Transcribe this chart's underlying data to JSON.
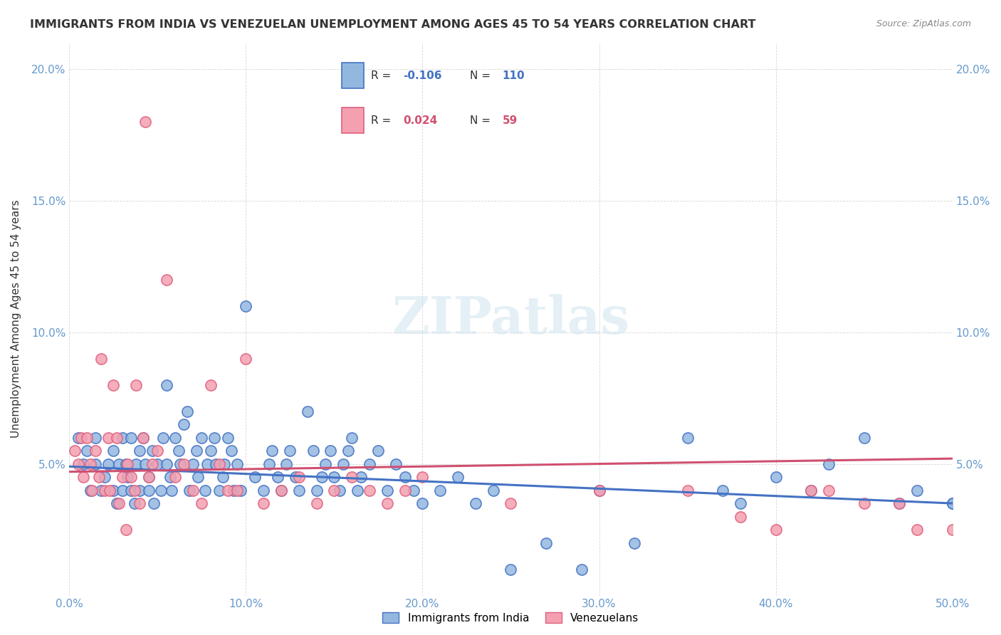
{
  "title": "IMMIGRANTS FROM INDIA VS VENEZUELAN UNEMPLOYMENT AMONG AGES 45 TO 54 YEARS CORRELATION CHART",
  "source": "Source: ZipAtlas.com",
  "xlabel": "",
  "ylabel": "Unemployment Among Ages 45 to 54 years",
  "xlim": [
    0.0,
    0.5
  ],
  "ylim": [
    0.0,
    0.21
  ],
  "xticks": [
    0.0,
    0.1,
    0.2,
    0.3,
    0.4,
    0.5
  ],
  "xticklabels": [
    "0.0%",
    "10.0%",
    "20.0%",
    "30.0%",
    "40.0%",
    "50.0%"
  ],
  "yticks_left": [
    0.0,
    0.05,
    0.1,
    0.15,
    0.2
  ],
  "yticklabels_left": [
    "",
    "5.0%",
    "10.0%",
    "15.0%",
    "20.0%"
  ],
  "yticks_right": [
    0.0,
    0.05,
    0.1,
    0.15,
    0.2
  ],
  "yticklabels_right": [
    "",
    "5.0%",
    "10.0%",
    "15.0%",
    "20.0%"
  ],
  "legend_r1": "R = -0.106",
  "legend_n1": "N = 110",
  "legend_r2": "R =  0.024",
  "legend_n2": "N =  59",
  "blue_color": "#93b8e0",
  "pink_color": "#f4a0b0",
  "blue_line_color": "#4472c4",
  "pink_line_color": "#e07080",
  "title_color": "#333333",
  "axis_color": "#6699cc",
  "watermark": "ZIPatlas",
  "blue_scatter_x": [
    0.005,
    0.008,
    0.01,
    0.012,
    0.015,
    0.015,
    0.018,
    0.02,
    0.022,
    0.025,
    0.025,
    0.027,
    0.028,
    0.03,
    0.03,
    0.032,
    0.033,
    0.035,
    0.035,
    0.037,
    0.038,
    0.04,
    0.04,
    0.042,
    0.043,
    0.045,
    0.045,
    0.047,
    0.048,
    0.05,
    0.052,
    0.053,
    0.055,
    0.055,
    0.057,
    0.058,
    0.06,
    0.062,
    0.063,
    0.065,
    0.067,
    0.068,
    0.07,
    0.072,
    0.073,
    0.075,
    0.077,
    0.078,
    0.08,
    0.082,
    0.083,
    0.085,
    0.087,
    0.088,
    0.09,
    0.092,
    0.093,
    0.095,
    0.097,
    0.1,
    0.105,
    0.11,
    0.113,
    0.115,
    0.118,
    0.12,
    0.123,
    0.125,
    0.128,
    0.13,
    0.135,
    0.138,
    0.14,
    0.143,
    0.145,
    0.148,
    0.15,
    0.153,
    0.155,
    0.158,
    0.16,
    0.163,
    0.165,
    0.17,
    0.175,
    0.18,
    0.185,
    0.19,
    0.195,
    0.2,
    0.21,
    0.22,
    0.23,
    0.24,
    0.25,
    0.27,
    0.29,
    0.3,
    0.32,
    0.35,
    0.37,
    0.38,
    0.4,
    0.42,
    0.43,
    0.45,
    0.47,
    0.48,
    0.5,
    0.5
  ],
  "blue_scatter_y": [
    0.06,
    0.05,
    0.055,
    0.04,
    0.05,
    0.06,
    0.04,
    0.045,
    0.05,
    0.055,
    0.04,
    0.035,
    0.05,
    0.04,
    0.06,
    0.05,
    0.045,
    0.06,
    0.04,
    0.035,
    0.05,
    0.04,
    0.055,
    0.06,
    0.05,
    0.04,
    0.045,
    0.055,
    0.035,
    0.05,
    0.04,
    0.06,
    0.08,
    0.05,
    0.045,
    0.04,
    0.06,
    0.055,
    0.05,
    0.065,
    0.07,
    0.04,
    0.05,
    0.055,
    0.045,
    0.06,
    0.04,
    0.05,
    0.055,
    0.06,
    0.05,
    0.04,
    0.045,
    0.05,
    0.06,
    0.055,
    0.04,
    0.05,
    0.04,
    0.11,
    0.045,
    0.04,
    0.05,
    0.055,
    0.045,
    0.04,
    0.05,
    0.055,
    0.045,
    0.04,
    0.07,
    0.055,
    0.04,
    0.045,
    0.05,
    0.055,
    0.045,
    0.04,
    0.05,
    0.055,
    0.06,
    0.04,
    0.045,
    0.05,
    0.055,
    0.04,
    0.05,
    0.045,
    0.04,
    0.035,
    0.04,
    0.045,
    0.035,
    0.04,
    0.01,
    0.02,
    0.01,
    0.04,
    0.02,
    0.06,
    0.04,
    0.035,
    0.045,
    0.04,
    0.05,
    0.06,
    0.035,
    0.04,
    0.035,
    0.035
  ],
  "pink_scatter_x": [
    0.003,
    0.005,
    0.007,
    0.008,
    0.01,
    0.012,
    0.013,
    0.015,
    0.017,
    0.018,
    0.02,
    0.022,
    0.023,
    0.025,
    0.027,
    0.028,
    0.03,
    0.032,
    0.033,
    0.035,
    0.037,
    0.038,
    0.04,
    0.042,
    0.043,
    0.045,
    0.047,
    0.05,
    0.055,
    0.06,
    0.065,
    0.07,
    0.075,
    0.08,
    0.085,
    0.09,
    0.095,
    0.1,
    0.11,
    0.12,
    0.13,
    0.14,
    0.15,
    0.16,
    0.17,
    0.18,
    0.19,
    0.2,
    0.25,
    0.3,
    0.35,
    0.38,
    0.4,
    0.42,
    0.43,
    0.45,
    0.47,
    0.48,
    0.5
  ],
  "pink_scatter_y": [
    0.055,
    0.05,
    0.06,
    0.045,
    0.06,
    0.05,
    0.04,
    0.055,
    0.045,
    0.09,
    0.04,
    0.06,
    0.04,
    0.08,
    0.06,
    0.035,
    0.045,
    0.025,
    0.05,
    0.045,
    0.04,
    0.08,
    0.035,
    0.06,
    0.18,
    0.045,
    0.05,
    0.055,
    0.12,
    0.045,
    0.05,
    0.04,
    0.035,
    0.08,
    0.05,
    0.04,
    0.04,
    0.09,
    0.035,
    0.04,
    0.045,
    0.035,
    0.04,
    0.045,
    0.04,
    0.035,
    0.04,
    0.045,
    0.035,
    0.04,
    0.04,
    0.03,
    0.025,
    0.04,
    0.04,
    0.035,
    0.035,
    0.025,
    0.025
  ],
  "blue_trend_x": [
    0.0,
    0.5
  ],
  "blue_trend_y_start": 0.049,
  "blue_trend_y_end": 0.035,
  "pink_trend_y_start": 0.047,
  "pink_trend_y_end": 0.052
}
